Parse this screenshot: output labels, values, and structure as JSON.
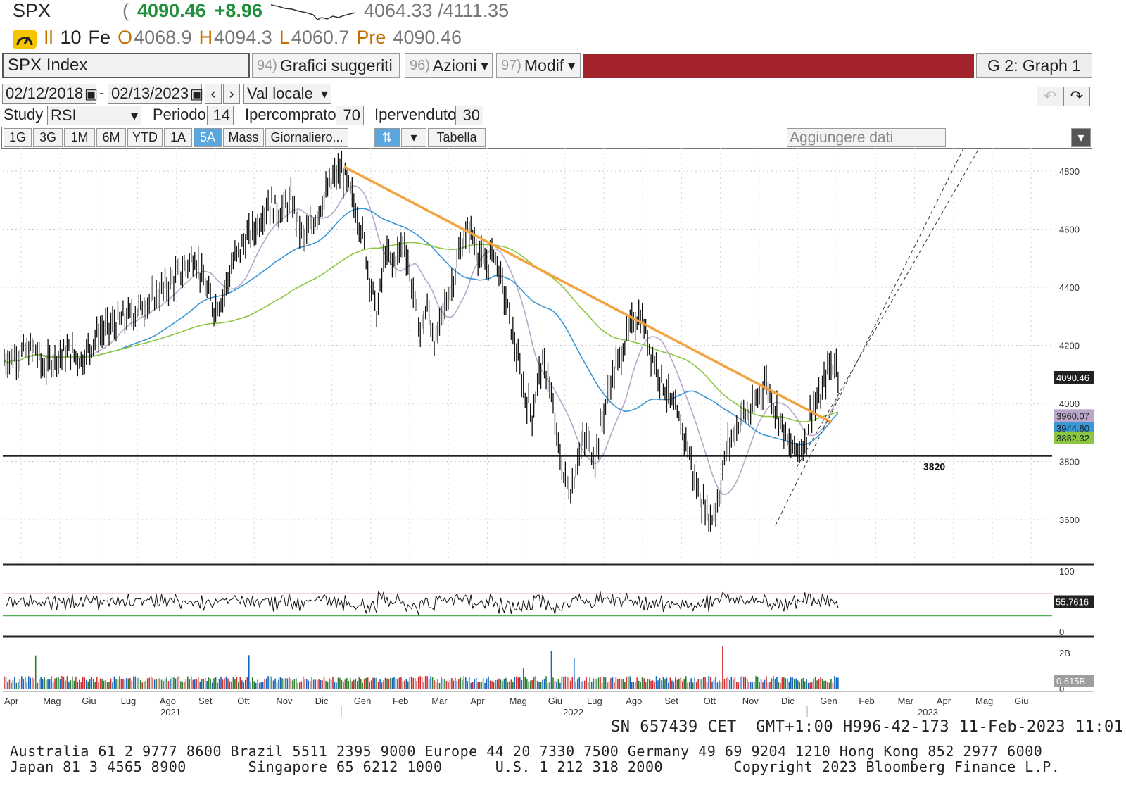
{
  "header": {
    "ticker": "SPX",
    "paren": "(",
    "last": "4090.46",
    "change": "+8.96",
    "range": "4064.33 /4111.35",
    "line2_icon": "gauge-icon",
    "il": "Il",
    "volume_label": "10",
    "fe": "Fe",
    "open_label": "O",
    "open": "4068.9",
    "high_label": "H",
    "high": "4094.3",
    "low_label": "L",
    "low": "4060.7",
    "pre_label": "Pre",
    "pre": "4090.46"
  },
  "toolbar": {
    "security": "SPX Index",
    "suggested_num": "94)",
    "suggested": "Grafici suggeriti",
    "actions_num": "96)",
    "actions": "Azioni",
    "modify_num": "97)",
    "modify": "Modif",
    "graph_label": "G 2: Graph 1",
    "accent_color": "#a3232b"
  },
  "dates": {
    "start": "02/12/2018",
    "end": "02/13/2023",
    "separator": "-",
    "currency": "Val locale"
  },
  "study": {
    "label": "Study",
    "value": "RSI",
    "period_label": "Periodo",
    "period": "14",
    "overbought_label": "Ipercomprato",
    "overbought": "70",
    "oversold_label": "Ipervenduto",
    "oversold": "30"
  },
  "periods": {
    "items": [
      "1G",
      "3G",
      "1M",
      "6M",
      "YTD",
      "1A",
      "5A",
      "Mass"
    ],
    "active": "5A",
    "frequency": "Giornaliero...",
    "table": "Tabella",
    "add_data": "Aggiungere dati"
  },
  "chart_data": {
    "type": "line",
    "main_y_ticks": [
      3600,
      3800,
      4000,
      4200,
      4400,
      4600,
      4800
    ],
    "main_ylim": [
      3450,
      4880
    ],
    "support_level": 3820,
    "support_label": "3820",
    "price_label": "4090.46",
    "ma_labels": [
      "3960.07",
      "3944.80",
      "3882.32"
    ],
    "ma_colors": [
      "#b9a6c9",
      "#3a97d4",
      "#8cc63f"
    ],
    "trendline_color": "#f4a340",
    "x_labels": [
      "Apr",
      "Mag",
      "Giu",
      "Lug",
      "Ago",
      "Set",
      "Ott",
      "Nov",
      "Dic",
      "Gen",
      "Feb",
      "Mar",
      "Apr",
      "Mag",
      "Giu",
      "Lug",
      "Ago",
      "Set",
      "Ott",
      "Nov",
      "Dic",
      "Gen",
      "Feb",
      "Mar",
      "Apr",
      "Mag",
      "Giu"
    ],
    "years": [
      "2021",
      "2022",
      "2023"
    ],
    "price_series": [
      [
        0,
        4150
      ],
      [
        0.4,
        4170
      ],
      [
        0.8,
        4190
      ],
      [
        1.0,
        4120
      ],
      [
        1.3,
        4160
      ],
      [
        1.7,
        4180
      ],
      [
        2.0,
        4150
      ],
      [
        2.4,
        4240
      ],
      [
        2.8,
        4270
      ],
      [
        3.2,
        4300
      ],
      [
        3.6,
        4340
      ],
      [
        4.0,
        4380
      ],
      [
        4.3,
        4420
      ],
      [
        4.6,
        4460
      ],
      [
        4.9,
        4510
      ],
      [
        5.2,
        4390
      ],
      [
        5.4,
        4330
      ],
      [
        5.6,
        4360
      ],
      [
        5.9,
        4490
      ],
      [
        6.2,
        4560
      ],
      [
        6.5,
        4610
      ],
      [
        6.8,
        4690
      ],
      [
        7.1,
        4660
      ],
      [
        7.4,
        4700
      ],
      [
        7.7,
        4560
      ],
      [
        7.9,
        4610
      ],
      [
        8.2,
        4700
      ],
      [
        8.5,
        4780
      ],
      [
        8.7,
        4800
      ],
      [
        8.9,
        4730
      ],
      [
        9.2,
        4600
      ],
      [
        9.4,
        4440
      ],
      [
        9.6,
        4300
      ],
      [
        9.8,
        4520
      ],
      [
        10.0,
        4480
      ],
      [
        10.3,
        4560
      ],
      [
        10.5,
        4400
      ],
      [
        10.7,
        4250
      ],
      [
        10.9,
        4330
      ],
      [
        11.1,
        4200
      ],
      [
        11.3,
        4320
      ],
      [
        11.5,
        4400
      ],
      [
        11.8,
        4560
      ],
      [
        12.0,
        4600
      ],
      [
        12.2,
        4520
      ],
      [
        12.4,
        4470
      ],
      [
        12.6,
        4530
      ],
      [
        12.8,
        4420
      ],
      [
        13.0,
        4300
      ],
      [
        13.2,
        4160
      ],
      [
        13.4,
        4030
      ],
      [
        13.6,
        3960
      ],
      [
        13.8,
        4130
      ],
      [
        14.0,
        4100
      ],
      [
        14.2,
        3900
      ],
      [
        14.4,
        3750
      ],
      [
        14.6,
        3700
      ],
      [
        14.8,
        3840
      ],
      [
        15.0,
        3880
      ],
      [
        15.2,
        3810
      ],
      [
        15.4,
        3950
      ],
      [
        15.6,
        4070
      ],
      [
        15.8,
        4140
      ],
      [
        16.0,
        4220
      ],
      [
        16.2,
        4290
      ],
      [
        16.4,
        4300
      ],
      [
        16.6,
        4200
      ],
      [
        16.8,
        4120
      ],
      [
        17.0,
        4060
      ],
      [
        17.2,
        3990
      ],
      [
        17.4,
        3930
      ],
      [
        17.6,
        3850
      ],
      [
        17.8,
        3720
      ],
      [
        18.0,
        3650
      ],
      [
        18.2,
        3600
      ],
      [
        18.4,
        3680
      ],
      [
        18.6,
        3850
      ],
      [
        18.8,
        3900
      ],
      [
        19.0,
        3970
      ],
      [
        19.2,
        3960
      ],
      [
        19.4,
        4020
      ],
      [
        19.6,
        4080
      ],
      [
        19.8,
        4000
      ],
      [
        20.0,
        3940
      ],
      [
        20.2,
        3850
      ],
      [
        20.4,
        3840
      ],
      [
        20.6,
        3860
      ],
      [
        20.8,
        3990
      ],
      [
        21.0,
        4010
      ],
      [
        21.2,
        4120
      ],
      [
        21.4,
        4140
      ],
      [
        21.5,
        4090
      ]
    ],
    "rsi_y_ticks": [
      0,
      100
    ],
    "rsi_levels": [
      30,
      70
    ],
    "rsi_last": "55.7616",
    "volume_y_ticks": [
      "0",
      "2B"
    ],
    "volume_last": "0.615B"
  },
  "footer": {
    "line1": "SN 657439 CET  GMT+1:00 H996-42-173 11-Feb-2023 11:01",
    "line2": "Australia 61 2 9777 8600 Brazil 5511 2395 9000 Europe 44 20 7330 7500 Germany 49 69 9204 1210 Hong Kong 852 2977 6000",
    "line3": "Japan 81 3 4565 8900       Singapore 65 6212 1000      U.S. 1 212 318 2000        Copyright 2023 Bloomberg Finance L.P."
  }
}
